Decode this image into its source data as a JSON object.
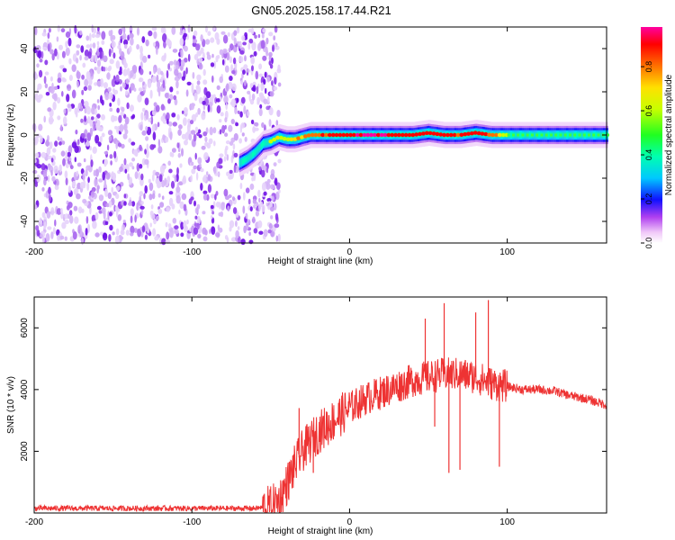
{
  "figure_title": "GN05.2025.158.17.44.R21",
  "chart_data": [
    {
      "type": "heatmap",
      "panel": "spectrogram",
      "xlabel": "Height of straight line (km)",
      "ylabel": "Frequency (Hz)",
      "xlim": [
        -200,
        163
      ],
      "ylim": [
        -50,
        50
      ],
      "x_ticks": [
        -200,
        -100,
        0,
        100
      ],
      "y_ticks": [
        -40,
        -20,
        0,
        20,
        40
      ],
      "grid": false,
      "noise_region_x": [
        -200,
        -50
      ],
      "signal_track": {
        "x": [
          -70,
          -65,
          -60,
          -55,
          -50,
          -45,
          -40,
          -35,
          -30,
          -25,
          -20,
          -10,
          0,
          10,
          20,
          30,
          40,
          50,
          60,
          70,
          80,
          90,
          100,
          110,
          120,
          130,
          140,
          150,
          163
        ],
        "freq": [
          -13,
          -11,
          -8,
          -4,
          -3,
          -1,
          -2,
          -2,
          -1,
          0,
          0,
          0,
          0,
          0,
          0,
          0,
          0,
          1,
          0,
          0,
          1,
          0,
          0,
          0,
          0,
          0,
          0,
          0,
          0
        ],
        "amplitude": [
          0.35,
          0.4,
          0.45,
          0.5,
          0.55,
          0.6,
          0.6,
          0.65,
          0.7,
          0.75,
          0.8,
          0.85,
          0.9,
          0.95,
          0.95,
          0.9,
          0.85,
          0.9,
          0.85,
          0.85,
          0.9,
          0.8,
          0.5,
          0.45,
          0.45,
          0.45,
          0.45,
          0.45,
          0.45
        ]
      },
      "colorbar": {
        "label": "Normalized spectral amplitude",
        "range": [
          0.0,
          0.98
        ],
        "ticks": [
          0.0,
          0.2,
          0.4,
          0.6,
          0.8
        ]
      }
    },
    {
      "type": "line",
      "panel": "snr",
      "xlabel": "Height of straight line (km)",
      "ylabel": "SNR (10 * v/v)",
      "xlim": [
        -200,
        163
      ],
      "ylim": [
        0,
        7000
      ],
      "x_ticks": [
        -200,
        -100,
        0,
        100
      ],
      "y_ticks": [
        2000,
        4000,
        6000
      ],
      "grid": false,
      "color": "#ee3333",
      "series": [
        {
          "x": [
            -200,
            -150,
            -100,
            -60,
            -50,
            -45,
            -40,
            -35,
            -30,
            -25,
            -20,
            -15,
            -10,
            -5,
            0,
            10,
            20,
            30,
            40,
            50,
            60,
            70,
            80,
            90,
            100,
            110,
            120,
            130,
            140,
            150,
            163
          ],
          "values": [
            150,
            150,
            150,
            150,
            200,
            400,
            900,
            1500,
            2000,
            2300,
            2600,
            2800,
            3000,
            3200,
            3400,
            3700,
            3900,
            4100,
            4300,
            4400,
            4500,
            4500,
            4400,
            4200,
            4100,
            4000,
            4000,
            3950,
            3800,
            3700,
            3500
          ]
        }
      ],
      "spikes": [
        {
          "x": 60,
          "value": 6800
        },
        {
          "x": 63,
          "value": 1300
        },
        {
          "x": 70,
          "value": 1400
        },
        {
          "x": 80,
          "value": 6500
        },
        {
          "x": 88,
          "value": 6900
        },
        {
          "x": 95,
          "value": 1500
        },
        {
          "x": 48,
          "value": 6300
        },
        {
          "x": 54,
          "value": 2800
        },
        {
          "x": -32,
          "value": 3400
        },
        {
          "x": -23,
          "value": 1300
        }
      ]
    }
  ]
}
